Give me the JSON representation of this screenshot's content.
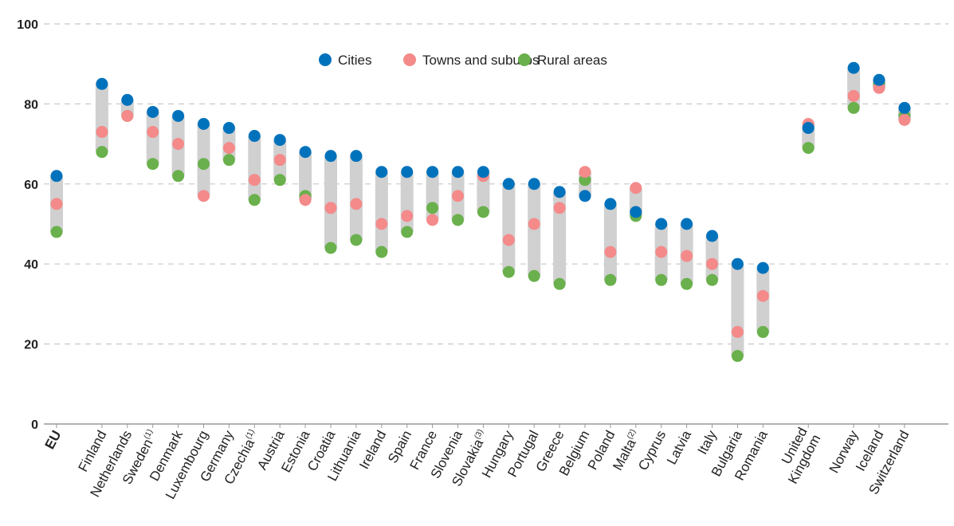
{
  "chart_data": {
    "type": "scatter",
    "title": "",
    "xlabel": "",
    "ylabel": "",
    "ylim": [
      0,
      100
    ],
    "yticks": [
      0,
      20,
      40,
      60,
      80,
      100
    ],
    "grid": "horizontal-dashed",
    "legend_position": "top-center",
    "series": [
      {
        "name": "Cities",
        "color": "#0072bc"
      },
      {
        "name": "Towns and suburbs",
        "color": "#f48a8a"
      },
      {
        "name": "Rural areas",
        "color": "#6ab04c"
      }
    ],
    "range_bar_color": "#d0d0d0",
    "categories": [
      {
        "label": "EU",
        "bold": true,
        "sup": "",
        "gap_before": false,
        "values": [
          62,
          55,
          48
        ]
      },
      {
        "label": "Finland",
        "bold": false,
        "sup": "",
        "gap_before": true,
        "values": [
          85,
          73,
          68
        ]
      },
      {
        "label": "Netherlands",
        "bold": false,
        "sup": "",
        "gap_before": false,
        "values": [
          81,
          77,
          77
        ]
      },
      {
        "label": "Sweden",
        "bold": false,
        "sup": "(1)",
        "gap_before": false,
        "values": [
          78,
          73,
          65
        ]
      },
      {
        "label": "Denmark",
        "bold": false,
        "sup": "",
        "gap_before": false,
        "values": [
          77,
          70,
          62
        ]
      },
      {
        "label": "Luxembourg",
        "bold": false,
        "sup": "",
        "gap_before": false,
        "values": [
          75,
          57,
          65
        ]
      },
      {
        "label": "Germany",
        "bold": false,
        "sup": "",
        "gap_before": false,
        "values": [
          74,
          69,
          66
        ]
      },
      {
        "label": "Czechia",
        "bold": false,
        "sup": "(1)",
        "gap_before": false,
        "values": [
          72,
          61,
          56
        ]
      },
      {
        "label": "Austria",
        "bold": false,
        "sup": "",
        "gap_before": false,
        "values": [
          71,
          66,
          61
        ]
      },
      {
        "label": "Estonia",
        "bold": false,
        "sup": "",
        "gap_before": false,
        "values": [
          68,
          56,
          57
        ]
      },
      {
        "label": "Croatia",
        "bold": false,
        "sup": "",
        "gap_before": false,
        "values": [
          67,
          54,
          44
        ]
      },
      {
        "label": "Lithuania",
        "bold": false,
        "sup": "",
        "gap_before": false,
        "values": [
          67,
          55,
          46
        ]
      },
      {
        "label": "Ireland",
        "bold": false,
        "sup": "",
        "gap_before": false,
        "values": [
          63,
          50,
          43
        ]
      },
      {
        "label": "Spain",
        "bold": false,
        "sup": "",
        "gap_before": false,
        "values": [
          63,
          52,
          48
        ]
      },
      {
        "label": "France",
        "bold": false,
        "sup": "",
        "gap_before": false,
        "values": [
          63,
          51,
          54
        ]
      },
      {
        "label": "Slovenia",
        "bold": false,
        "sup": "",
        "gap_before": false,
        "values": [
          63,
          57,
          51
        ]
      },
      {
        "label": "Slovakia",
        "bold": false,
        "sup": "(3)",
        "gap_before": false,
        "values": [
          63,
          62,
          53
        ]
      },
      {
        "label": "Hungary",
        "bold": false,
        "sup": "",
        "gap_before": false,
        "values": [
          60,
          46,
          38
        ]
      },
      {
        "label": "Portugal",
        "bold": false,
        "sup": "",
        "gap_before": false,
        "values": [
          60,
          50,
          37
        ]
      },
      {
        "label": "Greece",
        "bold": false,
        "sup": "",
        "gap_before": false,
        "values": [
          58,
          54,
          35
        ]
      },
      {
        "label": "Belgium",
        "bold": false,
        "sup": "",
        "gap_before": false,
        "values": [
          57,
          63,
          61
        ]
      },
      {
        "label": "Poland",
        "bold": false,
        "sup": "",
        "gap_before": false,
        "values": [
          55,
          43,
          36
        ]
      },
      {
        "label": "Malta",
        "bold": false,
        "sup": "(2)",
        "gap_before": false,
        "values": [
          53,
          59,
          52
        ]
      },
      {
        "label": "Cyprus",
        "bold": false,
        "sup": "",
        "gap_before": false,
        "values": [
          50,
          43,
          36
        ]
      },
      {
        "label": "Latvia",
        "bold": false,
        "sup": "",
        "gap_before": false,
        "values": [
          50,
          42,
          35
        ]
      },
      {
        "label": "Italy",
        "bold": false,
        "sup": "",
        "gap_before": false,
        "values": [
          47,
          40,
          36
        ]
      },
      {
        "label": "Bulgaria",
        "bold": false,
        "sup": "",
        "gap_before": false,
        "values": [
          40,
          23,
          17
        ]
      },
      {
        "label": "Romania",
        "bold": false,
        "sup": "",
        "gap_before": false,
        "values": [
          39,
          32,
          23
        ]
      },
      {
        "label": "United Kingdom",
        "bold": false,
        "sup": "",
        "gap_before": true,
        "values": [
          74,
          75,
          69
        ]
      },
      {
        "label": "Norway",
        "bold": false,
        "sup": "",
        "gap_before": true,
        "values": [
          89,
          82,
          79
        ]
      },
      {
        "label": "Iceland",
        "bold": false,
        "sup": "",
        "gap_before": false,
        "values": [
          86,
          84,
          85
        ]
      },
      {
        "label": "Switzerland",
        "bold": false,
        "sup": "",
        "gap_before": false,
        "values": [
          79,
          76,
          77
        ]
      }
    ]
  }
}
